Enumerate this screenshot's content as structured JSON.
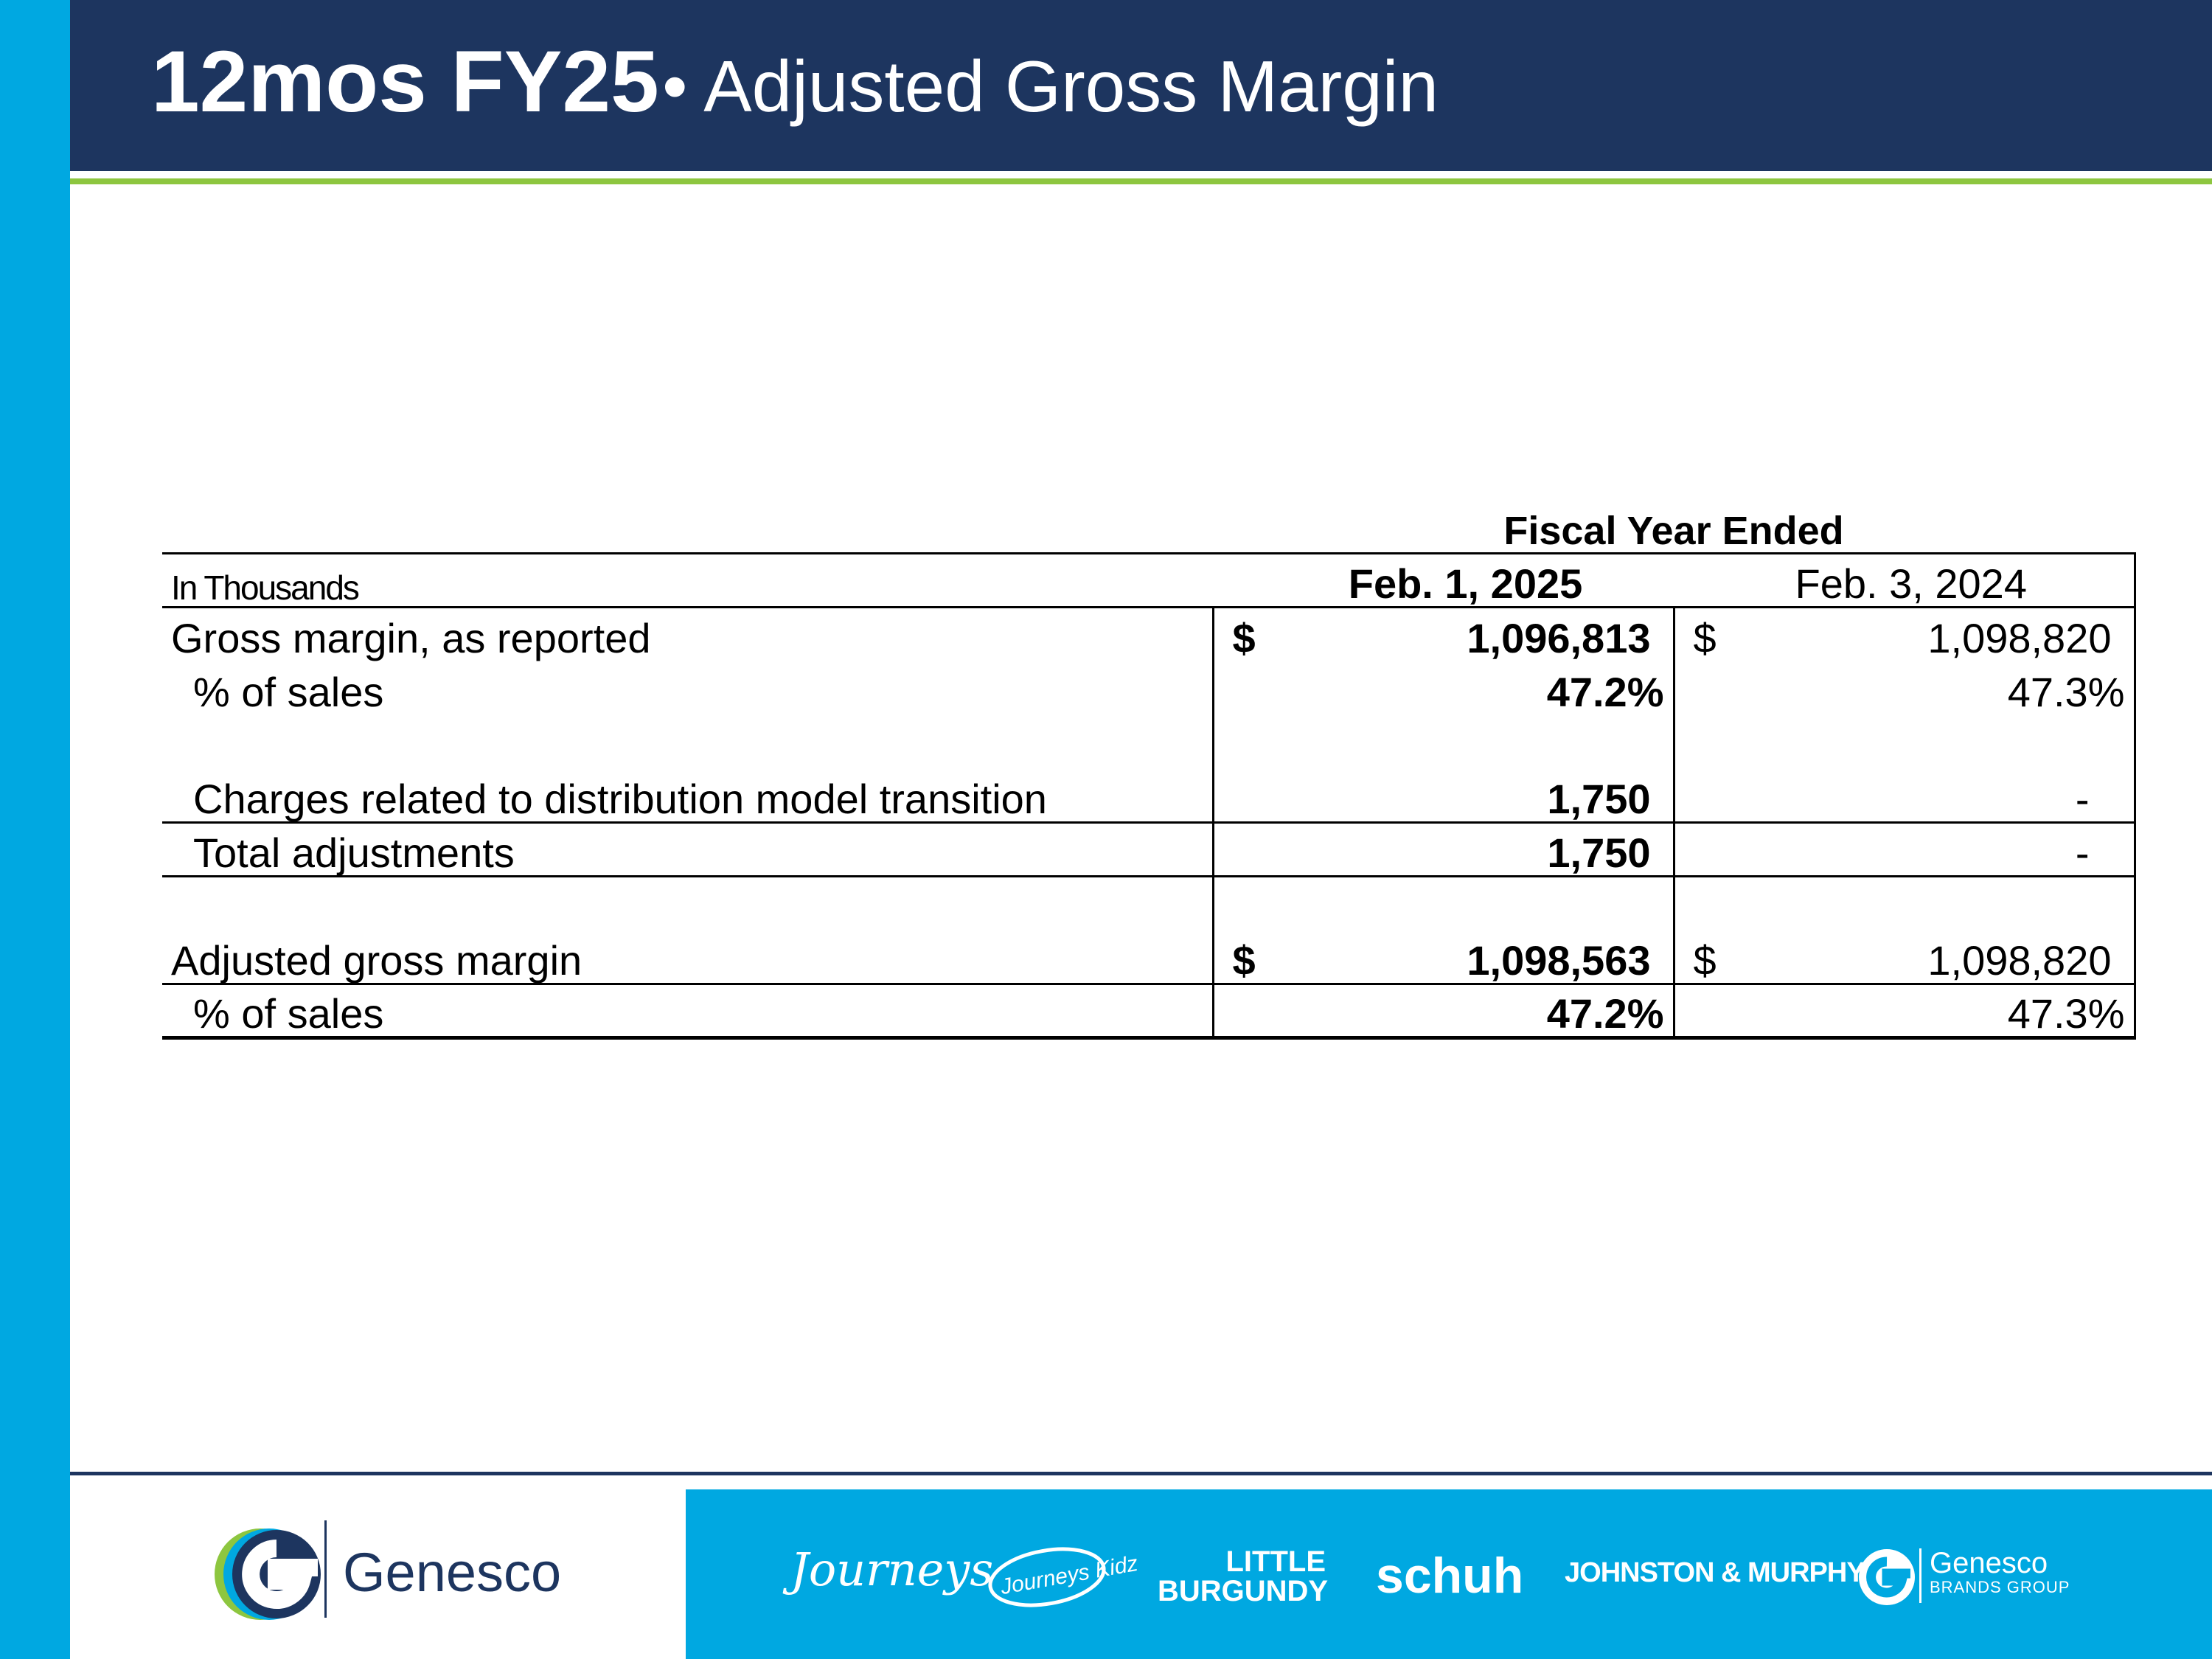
{
  "slide": {
    "title_bold": "12mos FY25",
    "title_rest": "• Adjusted Gross Margin"
  },
  "table": {
    "super_header": "Fiscal Year Ended",
    "units_label": "In Thousands",
    "col_2025": "Feb. 1, 2025",
    "col_2024": "Feb. 3, 2024",
    "rows": [
      {
        "label": "Gross margin, as reported",
        "cur_2025": "$",
        "val_2025": "1,096,813",
        "cur_2024": "$",
        "val_2024": "1,098,820"
      },
      {
        "label": "% of sales",
        "val_2025": "47.2%",
        "val_2024": "47.3%"
      },
      {
        "label": "Charges related to distribution model transition",
        "val_2025": "1,750",
        "val_2024": "-"
      },
      {
        "label": "Total adjustments",
        "val_2025": "1,750",
        "val_2024": "-"
      },
      {
        "label": "Adjusted gross margin",
        "cur_2025": "$",
        "val_2025": "1,098,563",
        "cur_2024": "$",
        "val_2024": "1,098,820"
      },
      {
        "label": "% of sales",
        "val_2025": "47.2%",
        "val_2024": "47.3%"
      }
    ]
  },
  "footer": {
    "company": "Genesco",
    "brands": [
      "Journeys",
      "Journeys Kidz",
      "LITTLE",
      "BURGUNDY",
      "schuh",
      "JOHNSTON & MURPHY.",
      "Genesco",
      "BRANDS GROUP"
    ],
    "colors": {
      "navy": "#1d355f",
      "cyan": "#00a8e1",
      "green": "#8dc63f"
    }
  }
}
